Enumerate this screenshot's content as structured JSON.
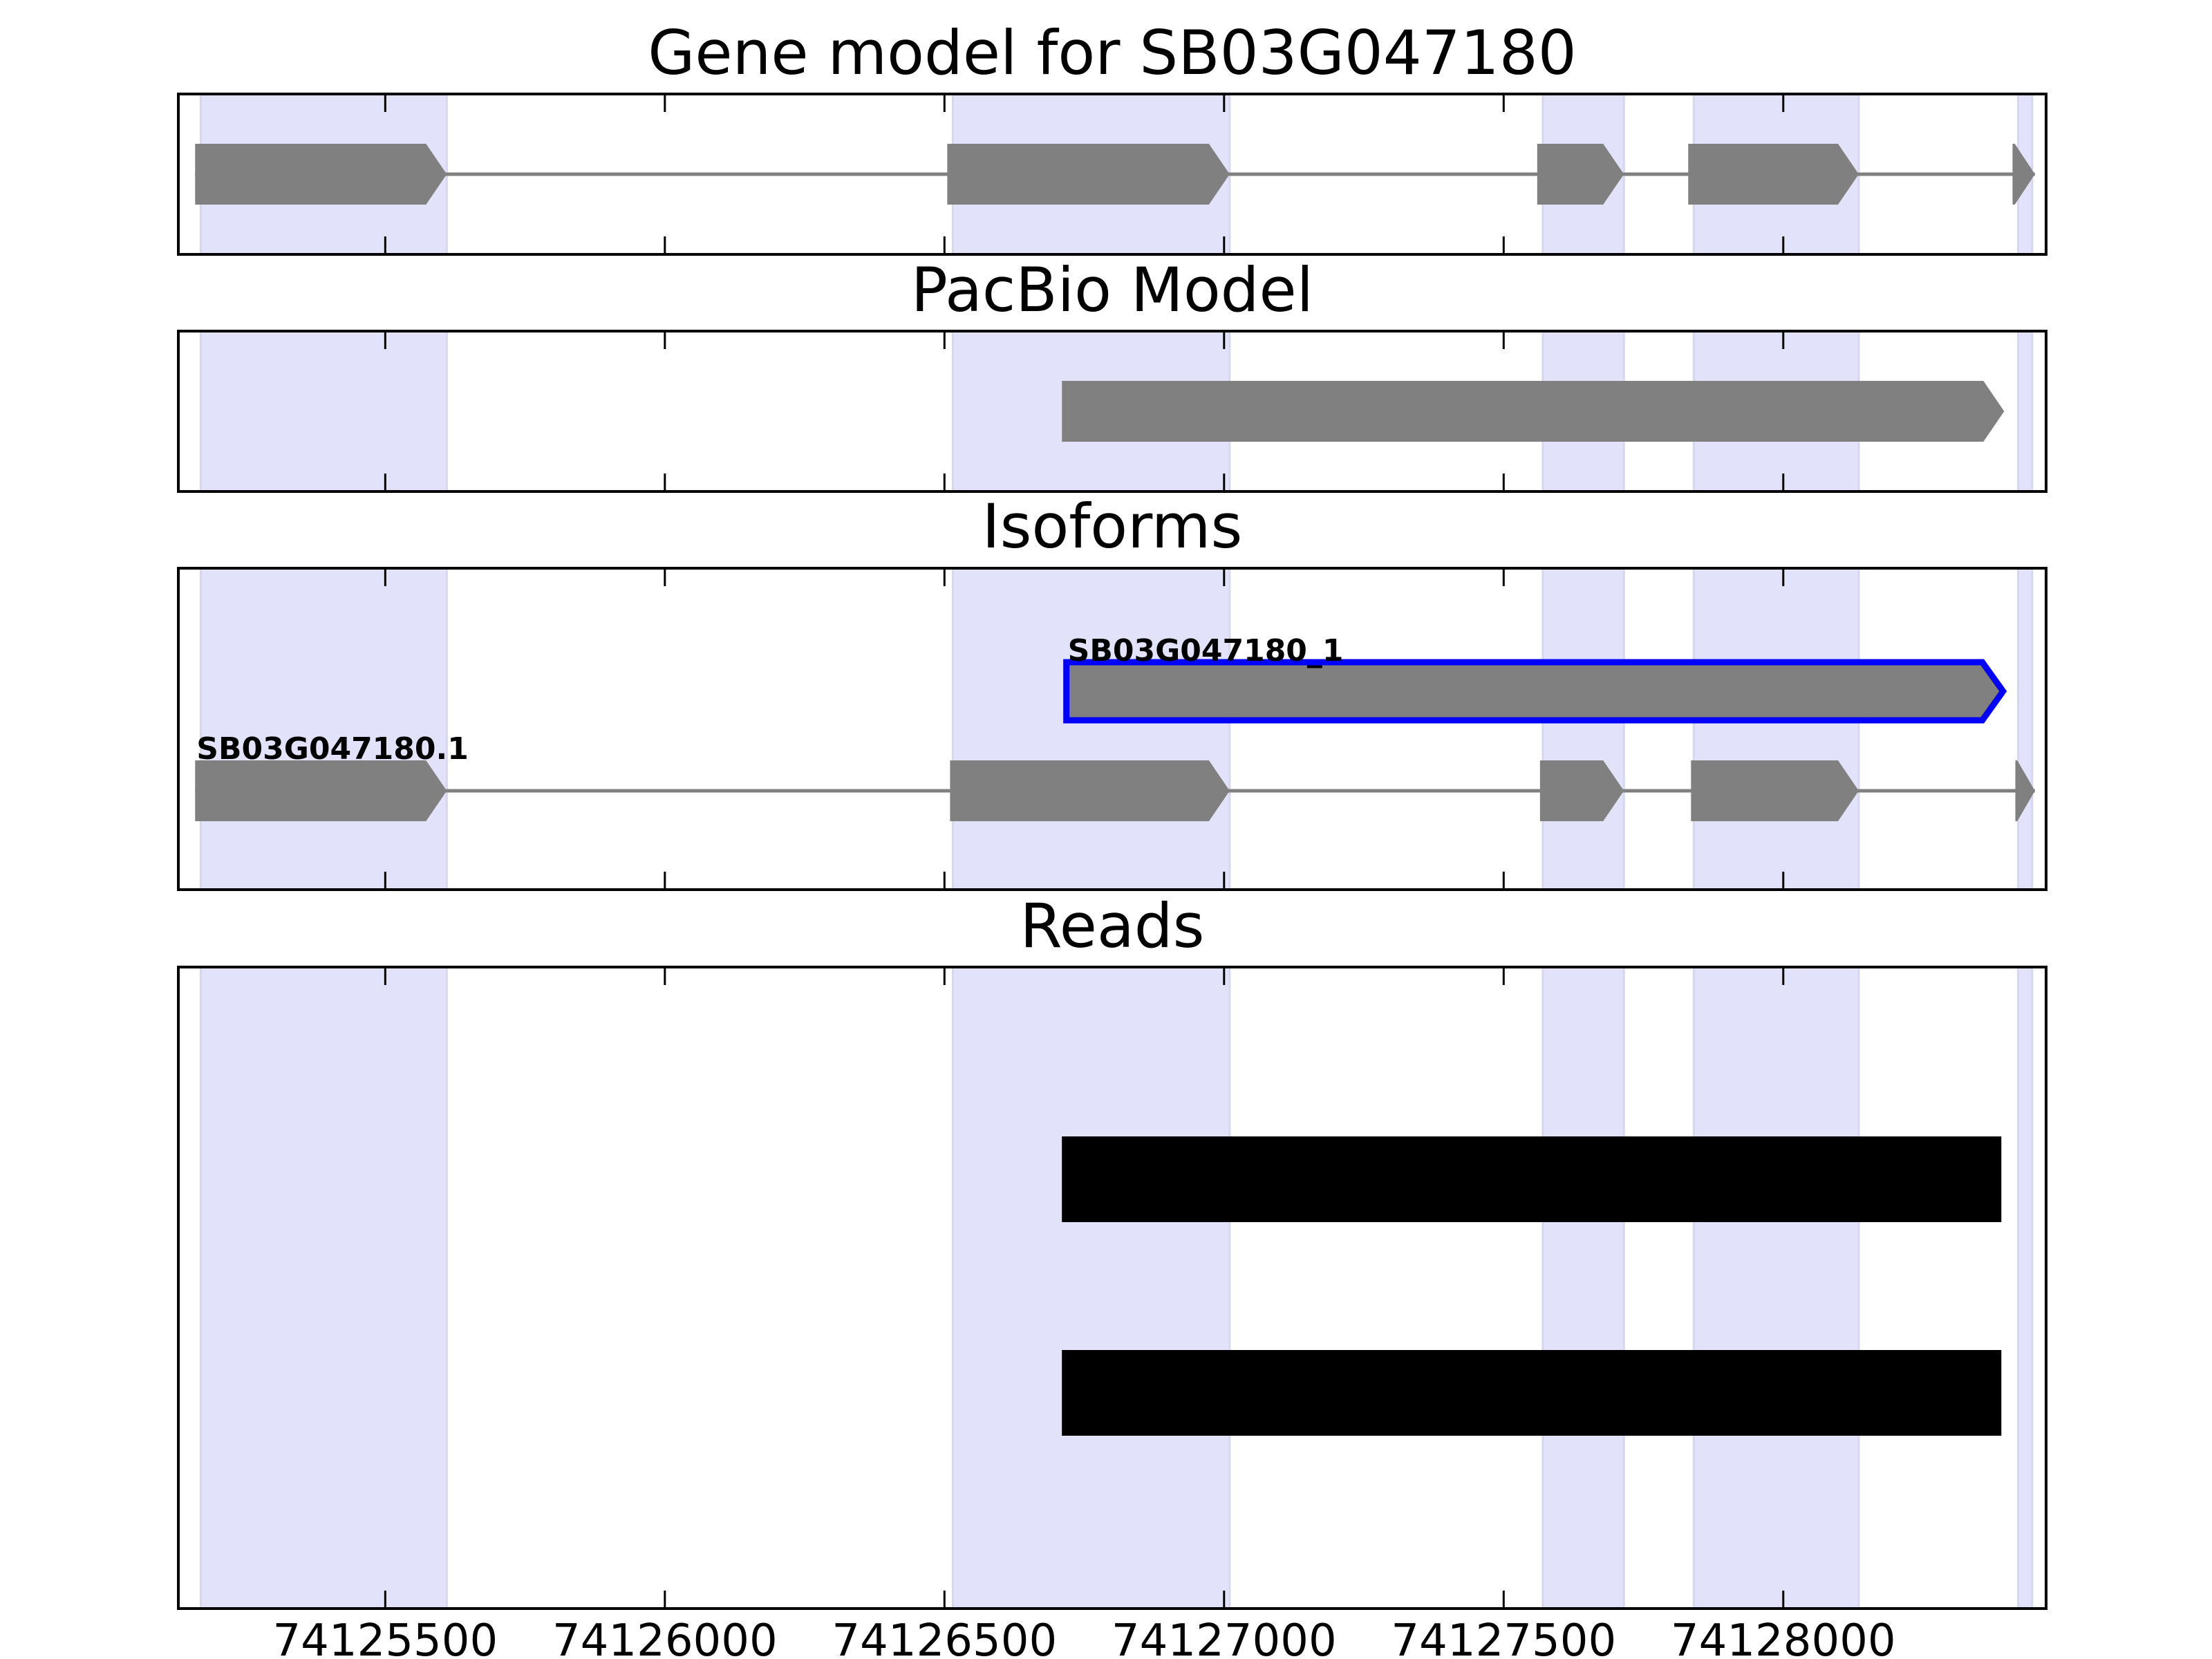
{
  "chart_data": {
    "type": "gene-track",
    "xlim": [
      74125130,
      74128470
    ],
    "xticks": [
      74125500,
      74126000,
      74126500,
      74127000,
      74127500,
      74128000
    ],
    "xtick_labels": [
      "74125500",
      "74126000",
      "74126500",
      "74127000",
      "74127500",
      "74128000"
    ],
    "highlight_regions": [
      [
        74125170,
        74125610
      ],
      [
        74126515,
        74127010
      ],
      [
        74127570,
        74127715
      ],
      [
        74127840,
        74128135
      ],
      [
        74128420,
        74128445
      ]
    ],
    "colors": {
      "highlight": "#e2e2fb",
      "feature": "#808080",
      "selected_outline": "#0000ff",
      "reads": "#000000",
      "axes": "#000000"
    },
    "panels": [
      {
        "title": "Gene model for SB03G047180",
        "tracks": [
          {
            "label": "",
            "exons": [
              [
                74125160,
                74125610
              ],
              [
                74126505,
                74127010
              ],
              [
                74127560,
                74127715
              ],
              [
                74127830,
                74128135
              ],
              [
                74128410,
                74128450
              ]
            ],
            "strand": "+",
            "selected": false
          }
        ]
      },
      {
        "title": "PacBio Model",
        "tracks": [
          {
            "label": "",
            "exons": [
              [
                74126710,
                74128395
              ]
            ],
            "strand": "+",
            "selected": false
          }
        ]
      },
      {
        "title": "Isoforms",
        "tracks": [
          {
            "label": "SB03G047180_1",
            "exons": [
              [
                74126718,
                74128393
              ]
            ],
            "strand": "+",
            "selected": true
          },
          {
            "label": "SB03G047180.1",
            "exons": [
              [
                74125160,
                74125610
              ],
              [
                74126510,
                74127010
              ],
              [
                74127565,
                74127715
              ],
              [
                74127835,
                74128135
              ],
              [
                74128415,
                74128450
              ]
            ],
            "strand": "+",
            "selected": false
          }
        ]
      },
      {
        "title": "Reads",
        "reads": [
          [
            74126710,
            74128390
          ],
          [
            74126710,
            74128390
          ]
        ]
      }
    ]
  }
}
